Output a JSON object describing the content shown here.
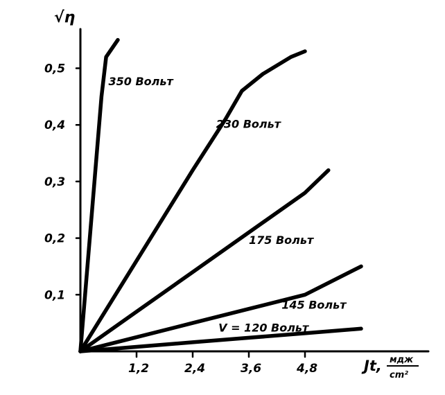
{
  "chart_data": {
    "type": "line",
    "ylabel": "√η",
    "xlabel": "Jt,",
    "xunit_num": "мдж",
    "xunit_den": "cm²",
    "xlim": [
      0,
      6
    ],
    "ylim": [
      0,
      0.55
    ],
    "x_ticks": [
      1.2,
      2.4,
      3.6,
      4.8
    ],
    "x_tick_labels": [
      "1,2",
      "2,4",
      "3,6",
      "4,8"
    ],
    "y_ticks": [
      0.1,
      0.2,
      0.3,
      0.4,
      0.5
    ],
    "y_tick_labels": [
      "0,1",
      "0,2",
      "0,3",
      "0,4",
      "0,5"
    ],
    "series": [
      {
        "name": "350 Вольт",
        "x": [
          0,
          0.25,
          0.45,
          0.55,
          0.8
        ],
        "y": [
          0,
          0.25,
          0.45,
          0.52,
          0.55
        ],
        "label_anchor": [
          0.6,
          0.47
        ]
      },
      {
        "name": "230 Вольт",
        "x": [
          0,
          1.2,
          2.4,
          3.1,
          3.45,
          3.9,
          4.5,
          4.8
        ],
        "y": [
          0,
          0.16,
          0.32,
          0.41,
          0.46,
          0.49,
          0.52,
          0.53
        ],
        "label_anchor": [
          2.9,
          0.395
        ]
      },
      {
        "name": "175 Вольт",
        "x": [
          0,
          1.2,
          2.4,
          3.6,
          4.8,
          5.3
        ],
        "y": [
          0,
          0.07,
          0.14,
          0.21,
          0.28,
          0.32
        ],
        "label_anchor": [
          3.6,
          0.19
        ]
      },
      {
        "name": "145 Вольт",
        "x": [
          0,
          1.2,
          2.4,
          3.6,
          4.8,
          6.0
        ],
        "y": [
          0,
          0.025,
          0.05,
          0.075,
          0.1,
          0.15
        ],
        "label_anchor": [
          4.3,
          0.075
        ]
      },
      {
        "name": "V = 120 Вольт",
        "x": [
          0,
          1.2,
          2.4,
          3.6,
          4.8,
          6.0
        ],
        "y": [
          0,
          0.008,
          0.016,
          0.024,
          0.032,
          0.04
        ],
        "label_anchor": [
          2.95,
          0.035
        ]
      }
    ]
  }
}
